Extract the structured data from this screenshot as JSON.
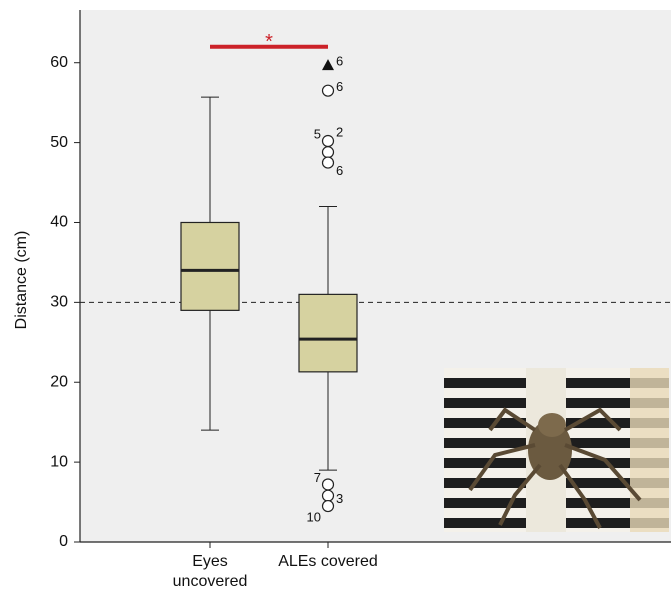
{
  "chart_data": {
    "type": "box",
    "ylabel": "Distance (cm)",
    "categories": [
      "Eyes uncovered",
      "ALEs covered"
    ],
    "boxes": [
      {
        "whislo": 14,
        "q1": 29,
        "med": 34,
        "q3": 40,
        "whishi": 55.7,
        "outliers": []
      },
      {
        "whislo": 9,
        "q1": 21.3,
        "med": 25.4,
        "q3": 31,
        "whishi": 42,
        "outliers": [
          {
            "value": 59.7,
            "marker": "triangle",
            "label": 6
          },
          {
            "value": 56.5,
            "marker": "circle",
            "label": 6
          },
          {
            "value": 50.2,
            "marker": "circle",
            "label": 2,
            "label_left": 5
          },
          {
            "value": 48.8,
            "marker": "circle"
          },
          {
            "value": 47.5,
            "marker": "circle",
            "label": 6
          },
          {
            "value": 7.2,
            "marker": "circle",
            "label_left": 7
          },
          {
            "value": 5.8,
            "marker": "circle",
            "label": 3
          },
          {
            "value": 4.5,
            "marker": "circle",
            "label_left": 10
          }
        ]
      }
    ],
    "box_color": "#d6d2a0",
    "reference_line": 30,
    "significance": {
      "y": 62,
      "label": "*",
      "color": "#cc2229"
    },
    "ylim": [
      0,
      66.6
    ],
    "yticks": [
      0,
      10,
      20,
      30,
      40,
      50,
      60
    ]
  }
}
